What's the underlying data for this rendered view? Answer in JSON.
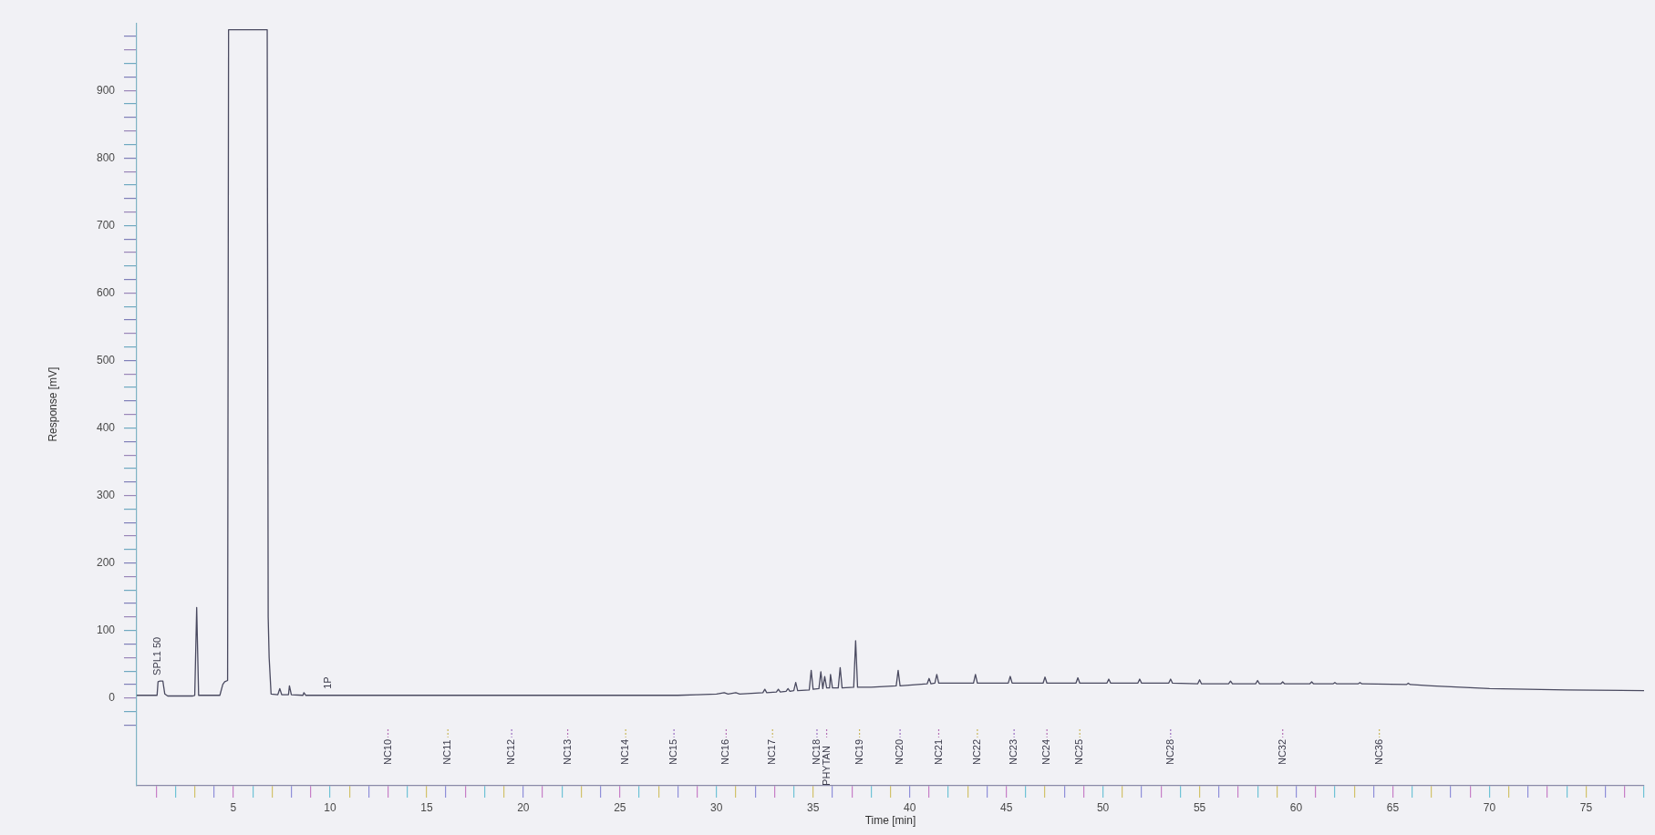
{
  "chart_data": {
    "type": "line",
    "xlabel": "Time [min]",
    "ylabel": "Response [mV]",
    "xlim": [
      0,
      78
    ],
    "ylim": [
      -130,
      1000
    ],
    "xticks": [
      {
        "value": 1,
        "label": null
      },
      {
        "value": 2,
        "label": null
      },
      {
        "value": 3,
        "label": null
      },
      {
        "value": 4,
        "label": null
      },
      5,
      {
        "value": 6,
        "label": null
      },
      {
        "value": 7,
        "label": null
      },
      {
        "value": 8,
        "label": null
      },
      {
        "value": 9,
        "label": null
      },
      10,
      {
        "value": 11,
        "label": null
      },
      {
        "value": 12,
        "label": null
      },
      {
        "value": 13,
        "label": null
      },
      {
        "value": 14,
        "label": null
      },
      15,
      {
        "value": 16,
        "label": null
      },
      {
        "value": 17,
        "label": null
      },
      {
        "value": 18,
        "label": null
      },
      {
        "value": 19,
        "label": null
      },
      20,
      {
        "value": 21,
        "label": null
      },
      {
        "value": 22,
        "label": null
      },
      {
        "value": 23,
        "label": null
      },
      {
        "value": 24,
        "label": null
      },
      25,
      {
        "value": 26,
        "label": null
      },
      {
        "value": 27,
        "label": null
      },
      {
        "value": 28,
        "label": null
      },
      {
        "value": 29,
        "label": null
      },
      30,
      {
        "value": 31,
        "label": null
      },
      {
        "value": 32,
        "label": null
      },
      {
        "value": 33,
        "label": null
      },
      {
        "value": 34,
        "label": null
      },
      35,
      {
        "value": 36,
        "label": null
      },
      {
        "value": 37,
        "label": null
      },
      {
        "value": 38,
        "label": null
      },
      {
        "value": 39,
        "label": null
      },
      40,
      {
        "value": 41,
        "label": null
      },
      {
        "value": 42,
        "label": null
      },
      {
        "value": 43,
        "label": null
      },
      {
        "value": 44,
        "label": null
      },
      45,
      {
        "value": 46,
        "label": null
      },
      {
        "value": 47,
        "label": null
      },
      {
        "value": 48,
        "label": null
      },
      {
        "value": 49,
        "label": null
      },
      50,
      {
        "value": 51,
        "label": null
      },
      {
        "value": 52,
        "label": null
      },
      {
        "value": 53,
        "label": null
      },
      {
        "value": 54,
        "label": null
      },
      55,
      {
        "value": 56,
        "label": null
      },
      {
        "value": 57,
        "label": null
      },
      {
        "value": 58,
        "label": null
      },
      {
        "value": 59,
        "label": null
      },
      60,
      {
        "value": 61,
        "label": null
      },
      {
        "value": 62,
        "label": null
      },
      {
        "value": 63,
        "label": null
      },
      {
        "value": 64,
        "label": null
      },
      65,
      {
        "value": 66,
        "label": null
      },
      {
        "value": 67,
        "label": null
      },
      {
        "value": 68,
        "label": null
      },
      {
        "value": 69,
        "label": null
      },
      70,
      {
        "value": 71,
        "label": null
      },
      {
        "value": 72,
        "label": null
      },
      {
        "value": 73,
        "label": null
      },
      {
        "value": 74,
        "label": null
      },
      75,
      {
        "value": 76,
        "label": null
      },
      {
        "value": 77,
        "label": null
      },
      {
        "value": 78,
        "label": null
      }
    ],
    "yticks": [
      {
        "value": -40,
        "label": null
      },
      {
        "value": -20,
        "label": null
      },
      0,
      {
        "value": 20,
        "label": null
      },
      {
        "value": 40,
        "label": null
      },
      {
        "value": 60,
        "label": null
      },
      {
        "value": 80,
        "label": null
      },
      100,
      {
        "value": 120,
        "label": null
      },
      {
        "value": 140,
        "label": null
      },
      {
        "value": 160,
        "label": null
      },
      {
        "value": 180,
        "label": null
      },
      200,
      {
        "value": 220,
        "label": null
      },
      {
        "value": 240,
        "label": null
      },
      {
        "value": 260,
        "label": null
      },
      {
        "value": 280,
        "label": null
      },
      300,
      {
        "value": 320,
        "label": null
      },
      {
        "value": 340,
        "label": null
      },
      {
        "value": 360,
        "label": null
      },
      {
        "value": 380,
        "label": null
      },
      400,
      {
        "value": 420,
        "label": null
      },
      {
        "value": 440,
        "label": null
      },
      {
        "value": 460,
        "label": null
      },
      {
        "value": 480,
        "label": null
      },
      500,
      {
        "value": 520,
        "label": null
      },
      {
        "value": 540,
        "label": null
      },
      {
        "value": 560,
        "label": null
      },
      {
        "value": 580,
        "label": null
      },
      600,
      {
        "value": 620,
        "label": null
      },
      {
        "value": 640,
        "label": null
      },
      {
        "value": 660,
        "label": null
      },
      {
        "value": 680,
        "label": null
      },
      700,
      {
        "value": 720,
        "label": null
      },
      {
        "value": 740,
        "label": null
      },
      {
        "value": 760,
        "label": null
      },
      {
        "value": 780,
        "label": null
      },
      800,
      {
        "value": 820,
        "label": null
      },
      {
        "value": 840,
        "label": null
      },
      {
        "value": 860,
        "label": null
      },
      {
        "value": 880,
        "label": null
      },
      900,
      {
        "value": 920,
        "label": null
      },
      {
        "value": 940,
        "label": null
      },
      {
        "value": 960,
        "label": null
      },
      {
        "value": 980,
        "label": null
      }
    ],
    "series": [
      {
        "color": "#4a4a60",
        "x": [
          0,
          1.05,
          1.1,
          1.2,
          1.35,
          1.45,
          1.6,
          2.9,
          3.0,
          3.1,
          3.2,
          4.3,
          4.45,
          4.55,
          4.7,
          4.75,
          6.75,
          6.8,
          6.85,
          6.95,
          7.3,
          7.4,
          7.5,
          7.85,
          7.9,
          8.0,
          8.6,
          8.65,
          8.75,
          9.9,
          28,
          29,
          30,
          30.4,
          30.6,
          31.0,
          31.2,
          32.4,
          32.5,
          32.6,
          33.1,
          33.2,
          33.3,
          33.6,
          33.7,
          33.8,
          34.0,
          34.1,
          34.2,
          34.8,
          34.9,
          35.0,
          35.3,
          35.4,
          35.5,
          35.6,
          35.7,
          35.85,
          35.9,
          36.0,
          36.3,
          36.4,
          36.5,
          37.1,
          37.2,
          37.3,
          38,
          39.3,
          39.4,
          39.5,
          40.9,
          41.0,
          41.1,
          41.3,
          41.4,
          41.5,
          43.3,
          43.4,
          43.5,
          45.1,
          45.2,
          45.3,
          46.9,
          47.0,
          47.1,
          48.6,
          48.7,
          48.8,
          50.2,
          50.3,
          50.4,
          51.8,
          51.9,
          52.0,
          53.4,
          53.5,
          53.6,
          54.9,
          55.0,
          55.1,
          56.5,
          56.6,
          56.7,
          57.9,
          58.0,
          58.1,
          59.2,
          59.3,
          59.4,
          60.7,
          60.8,
          60.9,
          61.9,
          62.0,
          62.1,
          63.2,
          63.3,
          63.4,
          65.7,
          65.8,
          65.9,
          67,
          70,
          74,
          78
        ],
        "values": [
          4,
          4,
          24,
          25,
          25,
          6,
          3,
          3,
          4,
          134,
          4,
          4,
          20,
          24,
          26,
          990,
          990,
          120,
          60,
          6,
          5,
          14,
          5,
          5,
          18,
          5,
          4,
          8,
          4,
          4,
          4,
          5,
          6,
          8,
          6,
          8,
          6,
          8,
          13,
          8,
          9,
          13,
          9,
          10,
          14,
          10,
          11,
          23,
          11,
          12,
          41,
          13,
          14,
          39,
          14,
          32,
          15,
          15,
          35,
          15,
          15,
          45,
          15,
          16,
          85,
          16,
          16,
          18,
          41,
          18,
          21,
          29,
          21,
          22,
          35,
          22,
          22,
          35,
          22,
          22,
          32,
          22,
          22,
          31,
          22,
          22,
          30,
          22,
          22,
          28,
          22,
          22,
          28,
          22,
          22,
          28,
          22,
          21,
          27,
          21,
          21,
          25,
          21,
          21,
          26,
          21,
          21,
          24,
          21,
          21,
          24,
          21,
          21,
          23,
          21,
          21,
          23,
          21,
          20,
          22,
          20,
          18,
          14,
          12,
          11
        ]
      }
    ],
    "annotations": [
      {
        "text": "SPL1 50",
        "x": 1.1,
        "y": 24
      },
      {
        "text": "1P",
        "x": 9.9,
        "y": 4
      }
    ],
    "ref_lines": [
      {
        "axis": "x",
        "value": 13.0,
        "label": "NC10",
        "line_style": "dotted"
      },
      {
        "axis": "x",
        "value": 16.1,
        "label": "NC11",
        "line_style": "dotted"
      },
      {
        "axis": "x",
        "value": 19.4,
        "label": "NC12",
        "line_style": "dotted"
      },
      {
        "axis": "x",
        "value": 22.3,
        "label": "NC13",
        "line_style": "dotted"
      },
      {
        "axis": "x",
        "value": 25.3,
        "label": "NC14",
        "line_style": "dotted"
      },
      {
        "axis": "x",
        "value": 27.8,
        "label": "NC15",
        "line_style": "dotted"
      },
      {
        "axis": "x",
        "value": 30.5,
        "label": "NC16",
        "line_style": "dotted"
      },
      {
        "axis": "x",
        "value": 32.9,
        "label": "NC17",
        "line_style": "dotted"
      },
      {
        "axis": "x",
        "value": 35.2,
        "label": "NC18",
        "line_style": "dotted"
      },
      {
        "axis": "x",
        "value": 35.7,
        "label": "PHYTAN",
        "line_style": "dotted"
      },
      {
        "axis": "x",
        "value": 37.4,
        "label": "NC19",
        "line_style": "dotted"
      },
      {
        "axis": "x",
        "value": 39.5,
        "label": "NC20",
        "line_style": "dotted"
      },
      {
        "axis": "x",
        "value": 41.5,
        "label": "NC21",
        "line_style": "dotted"
      },
      {
        "axis": "x",
        "value": 43.5,
        "label": "NC22",
        "line_style": "dotted"
      },
      {
        "axis": "x",
        "value": 45.4,
        "label": "NC23",
        "line_style": "dotted"
      },
      {
        "axis": "x",
        "value": 47.1,
        "label": "NC24",
        "line_style": "dotted"
      },
      {
        "axis": "x",
        "value": 48.8,
        "label": "NC25",
        "line_style": "dotted"
      },
      {
        "axis": "x",
        "value": 53.5,
        "label": "NC28",
        "line_style": "dotted"
      },
      {
        "axis": "x",
        "value": 59.3,
        "label": "NC32",
        "line_style": "dotted"
      },
      {
        "axis": "x",
        "value": 64.3,
        "label": "NC36",
        "line_style": "dotted"
      }
    ]
  }
}
